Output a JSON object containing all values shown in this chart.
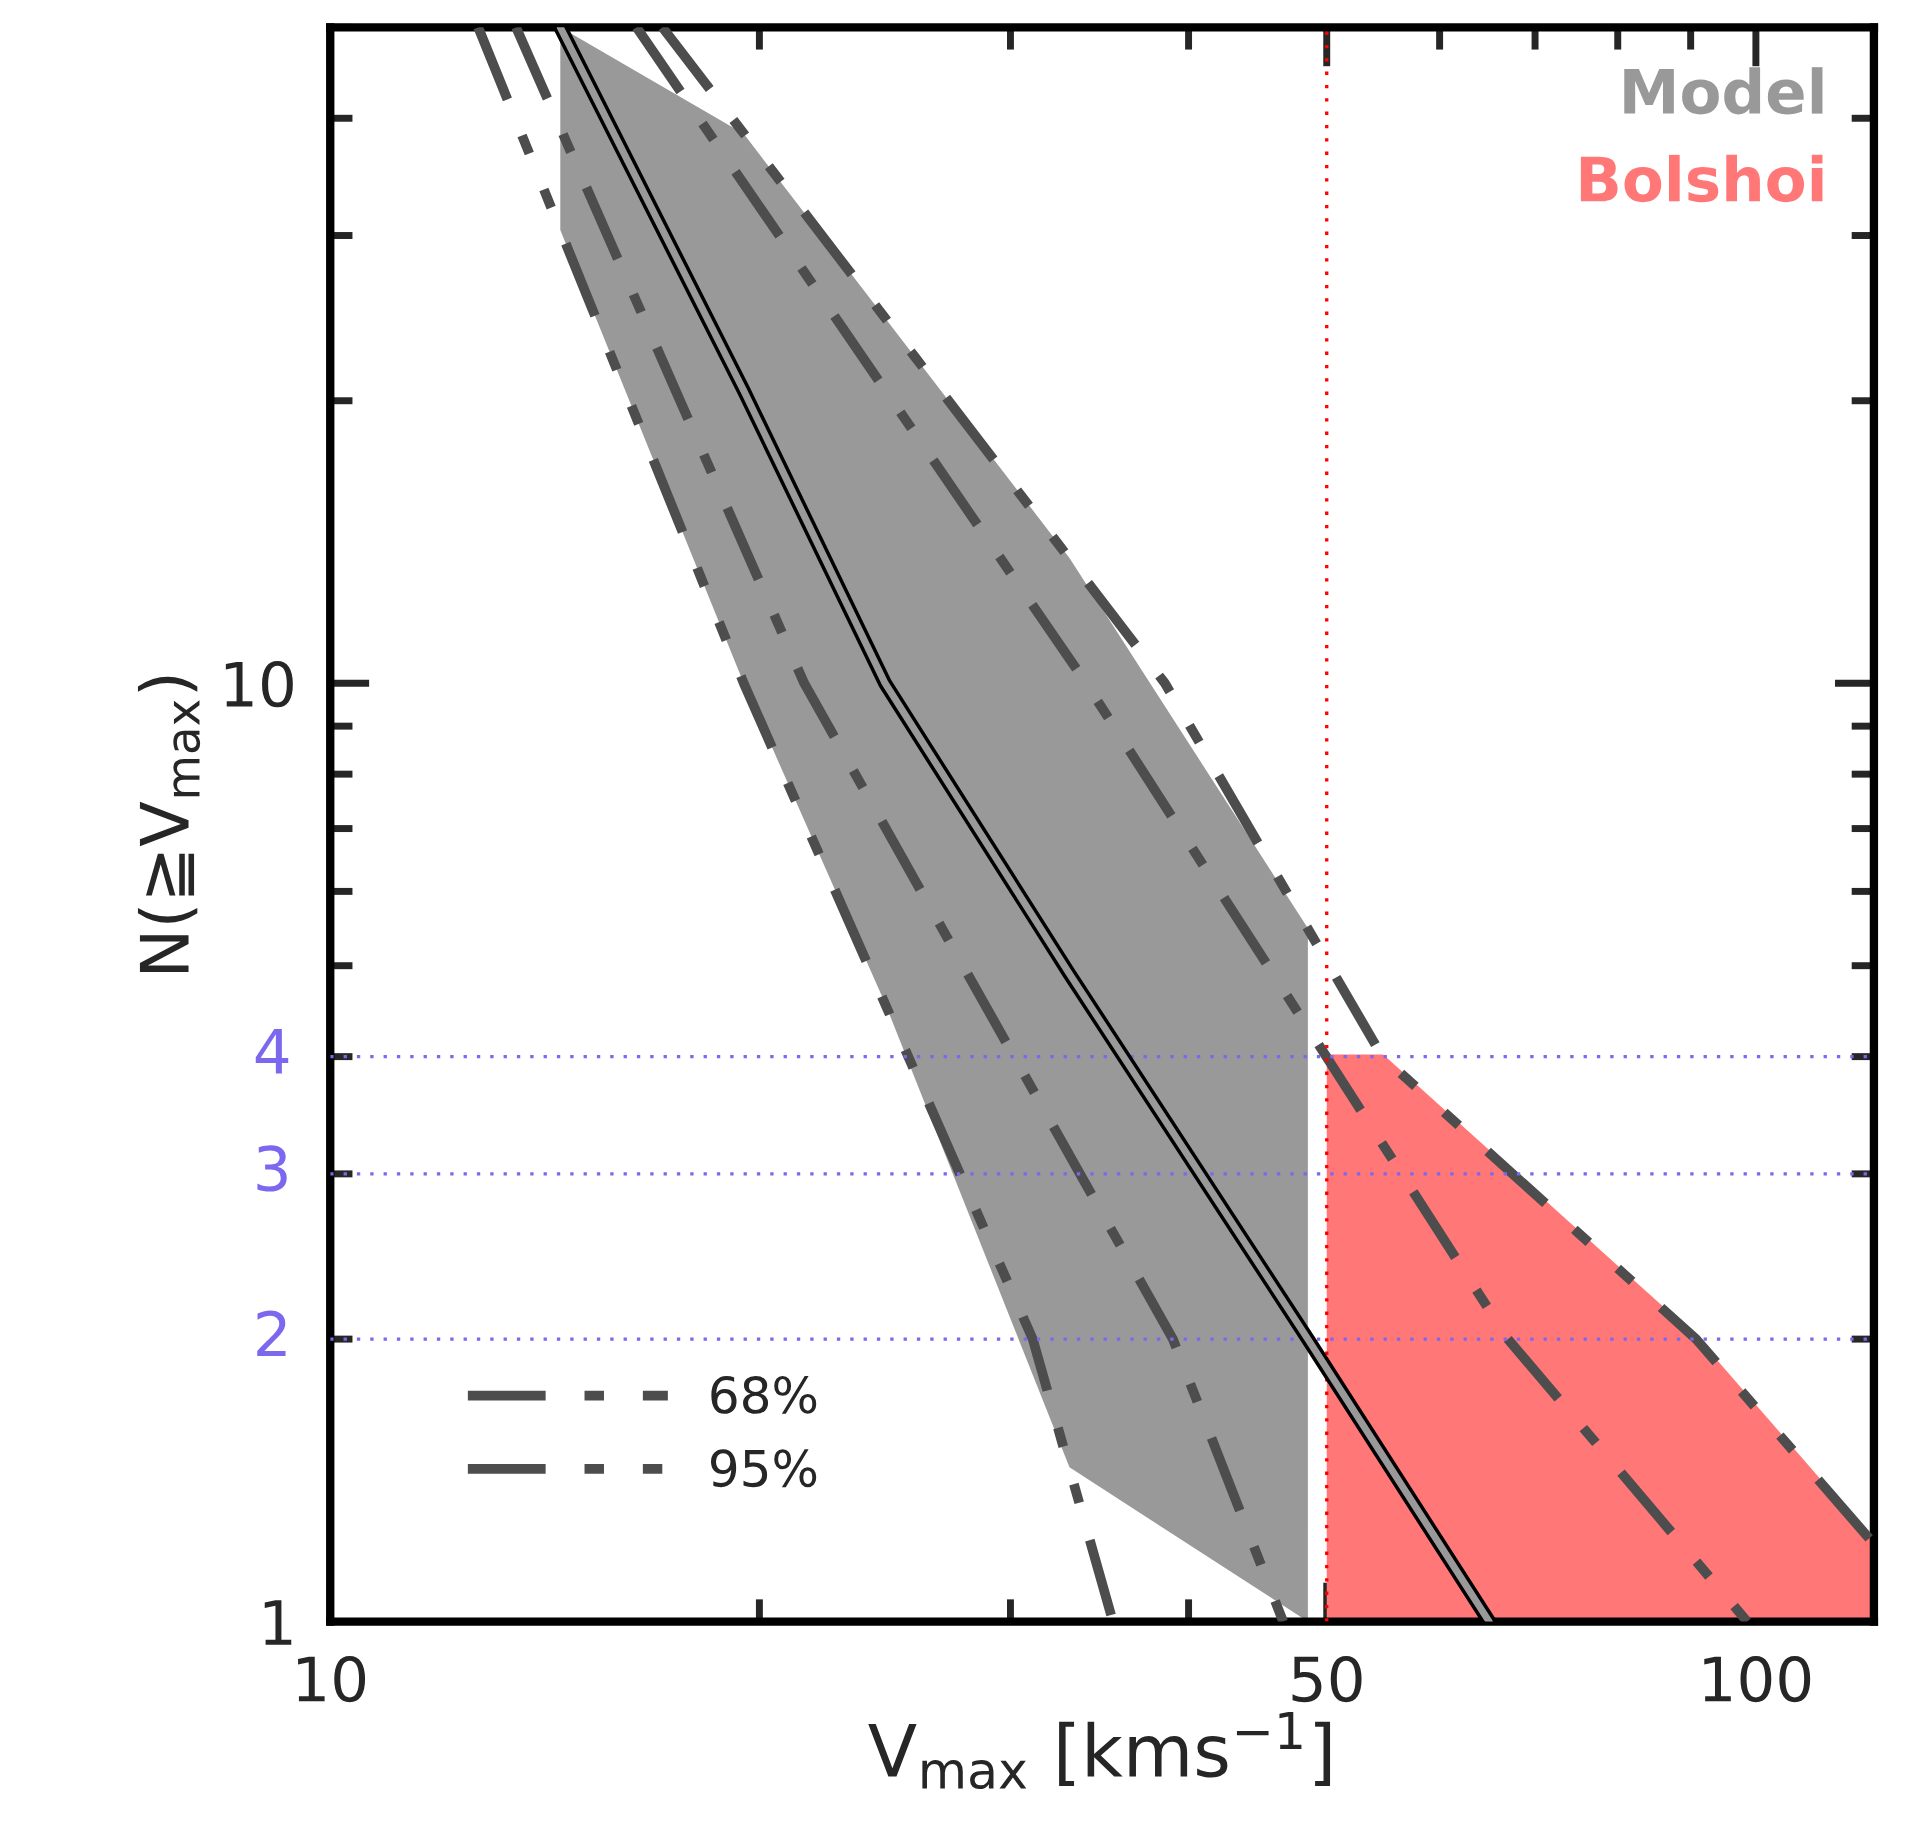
{
  "chart_data": {
    "type": "line",
    "xlabel": "V$_{max}$ [kms$^{−1}$]",
    "ylabel": "N(≧V$_{max}$)",
    "log": "xy",
    "xlim": [
      10,
      121
    ],
    "ylim": [
      1,
      50
    ],
    "xticks": [
      10,
      50,
      100
    ],
    "yticks": [
      1,
      10
    ],
    "grid": false,
    "legend": "bottom left",
    "series": [
      {
        "name": "Model",
        "color": "#999999",
        "line_style": "solid",
        "x": [
          14.5,
          19.5,
          24.5,
          33,
          48.5,
          65
        ],
        "values": [
          50,
          20.5,
          10,
          4.9,
          2,
          1
        ],
        "lower": [
          30.4,
          10,
          4.56,
          1.46,
          1,
          null
        ],
        "upper": [
          50,
          38.5,
          24.5,
          13.6,
          5.48,
          null
        ]
      },
      {
        "type": "area",
        "name": "Bolshoi",
        "color": "#ff7777",
        "x": [
          50,
          54.7,
          90.8,
          121
        ],
        "values": [
          4,
          4,
          2,
          1.21
        ]
      },
      {
        "name": "68%",
        "color": "#4d4d4d",
        "line_style": "dashdot",
        "x": [
          13.5,
          21.5,
          39,
          46.6
        ],
        "values": [
          50,
          10,
          2,
          1
        ]
      },
      {
        "color": "#4d4d4d",
        "line_style": "dashdot",
        "x": [
          16.4,
          33.9,
          67,
          98.6
        ],
        "values": [
          50,
          10,
          2,
          1
        ]
      },
      {
        "name": "95%",
        "color": "#4d4d4d",
        "line_style": "dashdotdot",
        "x": [
          12.7,
          19.5,
          31.1,
          35.4
        ],
        "values": [
          50,
          10,
          2,
          1
        ]
      },
      {
        "color": "#4d4d4d",
        "line_style": "dashdotdot",
        "x": [
          17.1,
          38.5,
          54.7,
          90.8,
          121
        ],
        "values": [
          50,
          10,
          4,
          2,
          1.21
        ]
      }
    ],
    "ref_lines": [
      {
        "axis": "y",
        "value": 4,
        "label": "4",
        "color": "#7b68ee",
        "line_style": "dotted"
      },
      {
        "axis": "y",
        "value": 3,
        "label": "3",
        "color": "#7b68ee",
        "line_style": "dotted"
      },
      {
        "axis": "y",
        "value": 2,
        "label": "2",
        "color": "#7b68ee",
        "line_style": "dotted"
      },
      {
        "axis": "x",
        "value": 50,
        "color": "#ff0000",
        "line_style": "dotted"
      }
    ]
  }
}
